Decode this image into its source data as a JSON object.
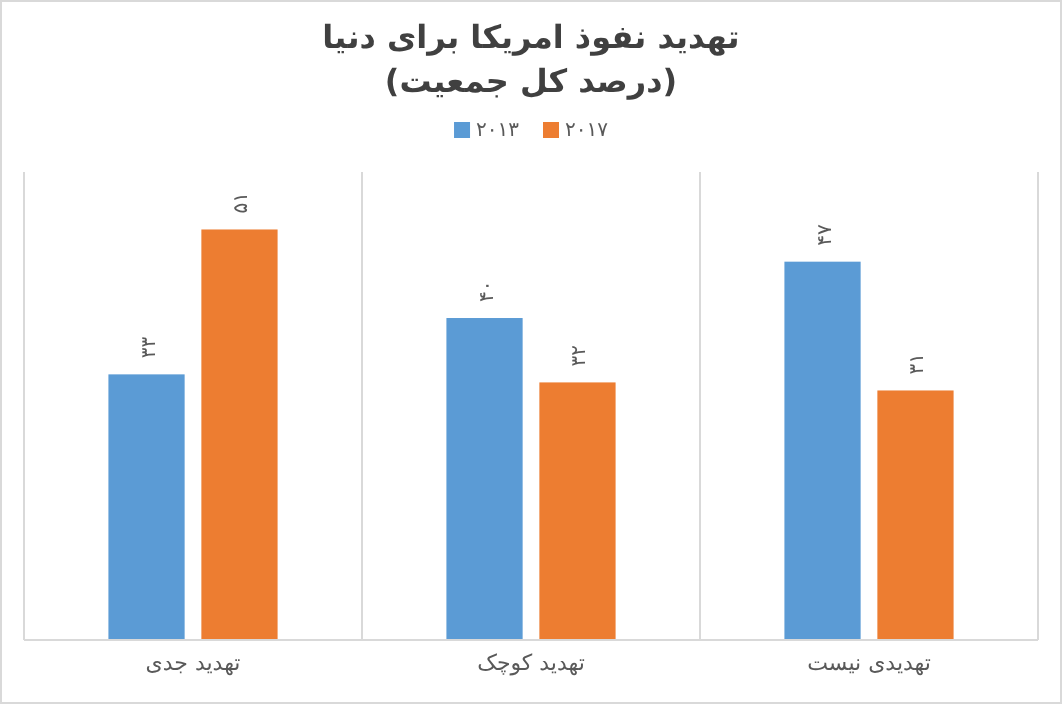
{
  "chart_data": {
    "type": "bar",
    "title": "تهدید نفوذ امریکا برای دنیا",
    "subtitle": "(درصد کل جمعیت)",
    "categories": [
      "تهدید جدی",
      "تهدید کوچک",
      "تهدیدی نیست"
    ],
    "series": [
      {
        "name": "۲۰۱۳",
        "color": "#5b9bd5",
        "values": [
          33,
          40,
          47
        ],
        "value_labels": [
          "۳۳",
          "۴۰",
          "۴۷"
        ]
      },
      {
        "name": "۲۰۱۷",
        "color": "#ed7d31",
        "values": [
          51,
          32,
          31
        ],
        "value_labels": [
          "۵۱",
          "۳۲",
          "۳۱"
        ]
      }
    ],
    "legend": "top",
    "grid": "x"
  }
}
